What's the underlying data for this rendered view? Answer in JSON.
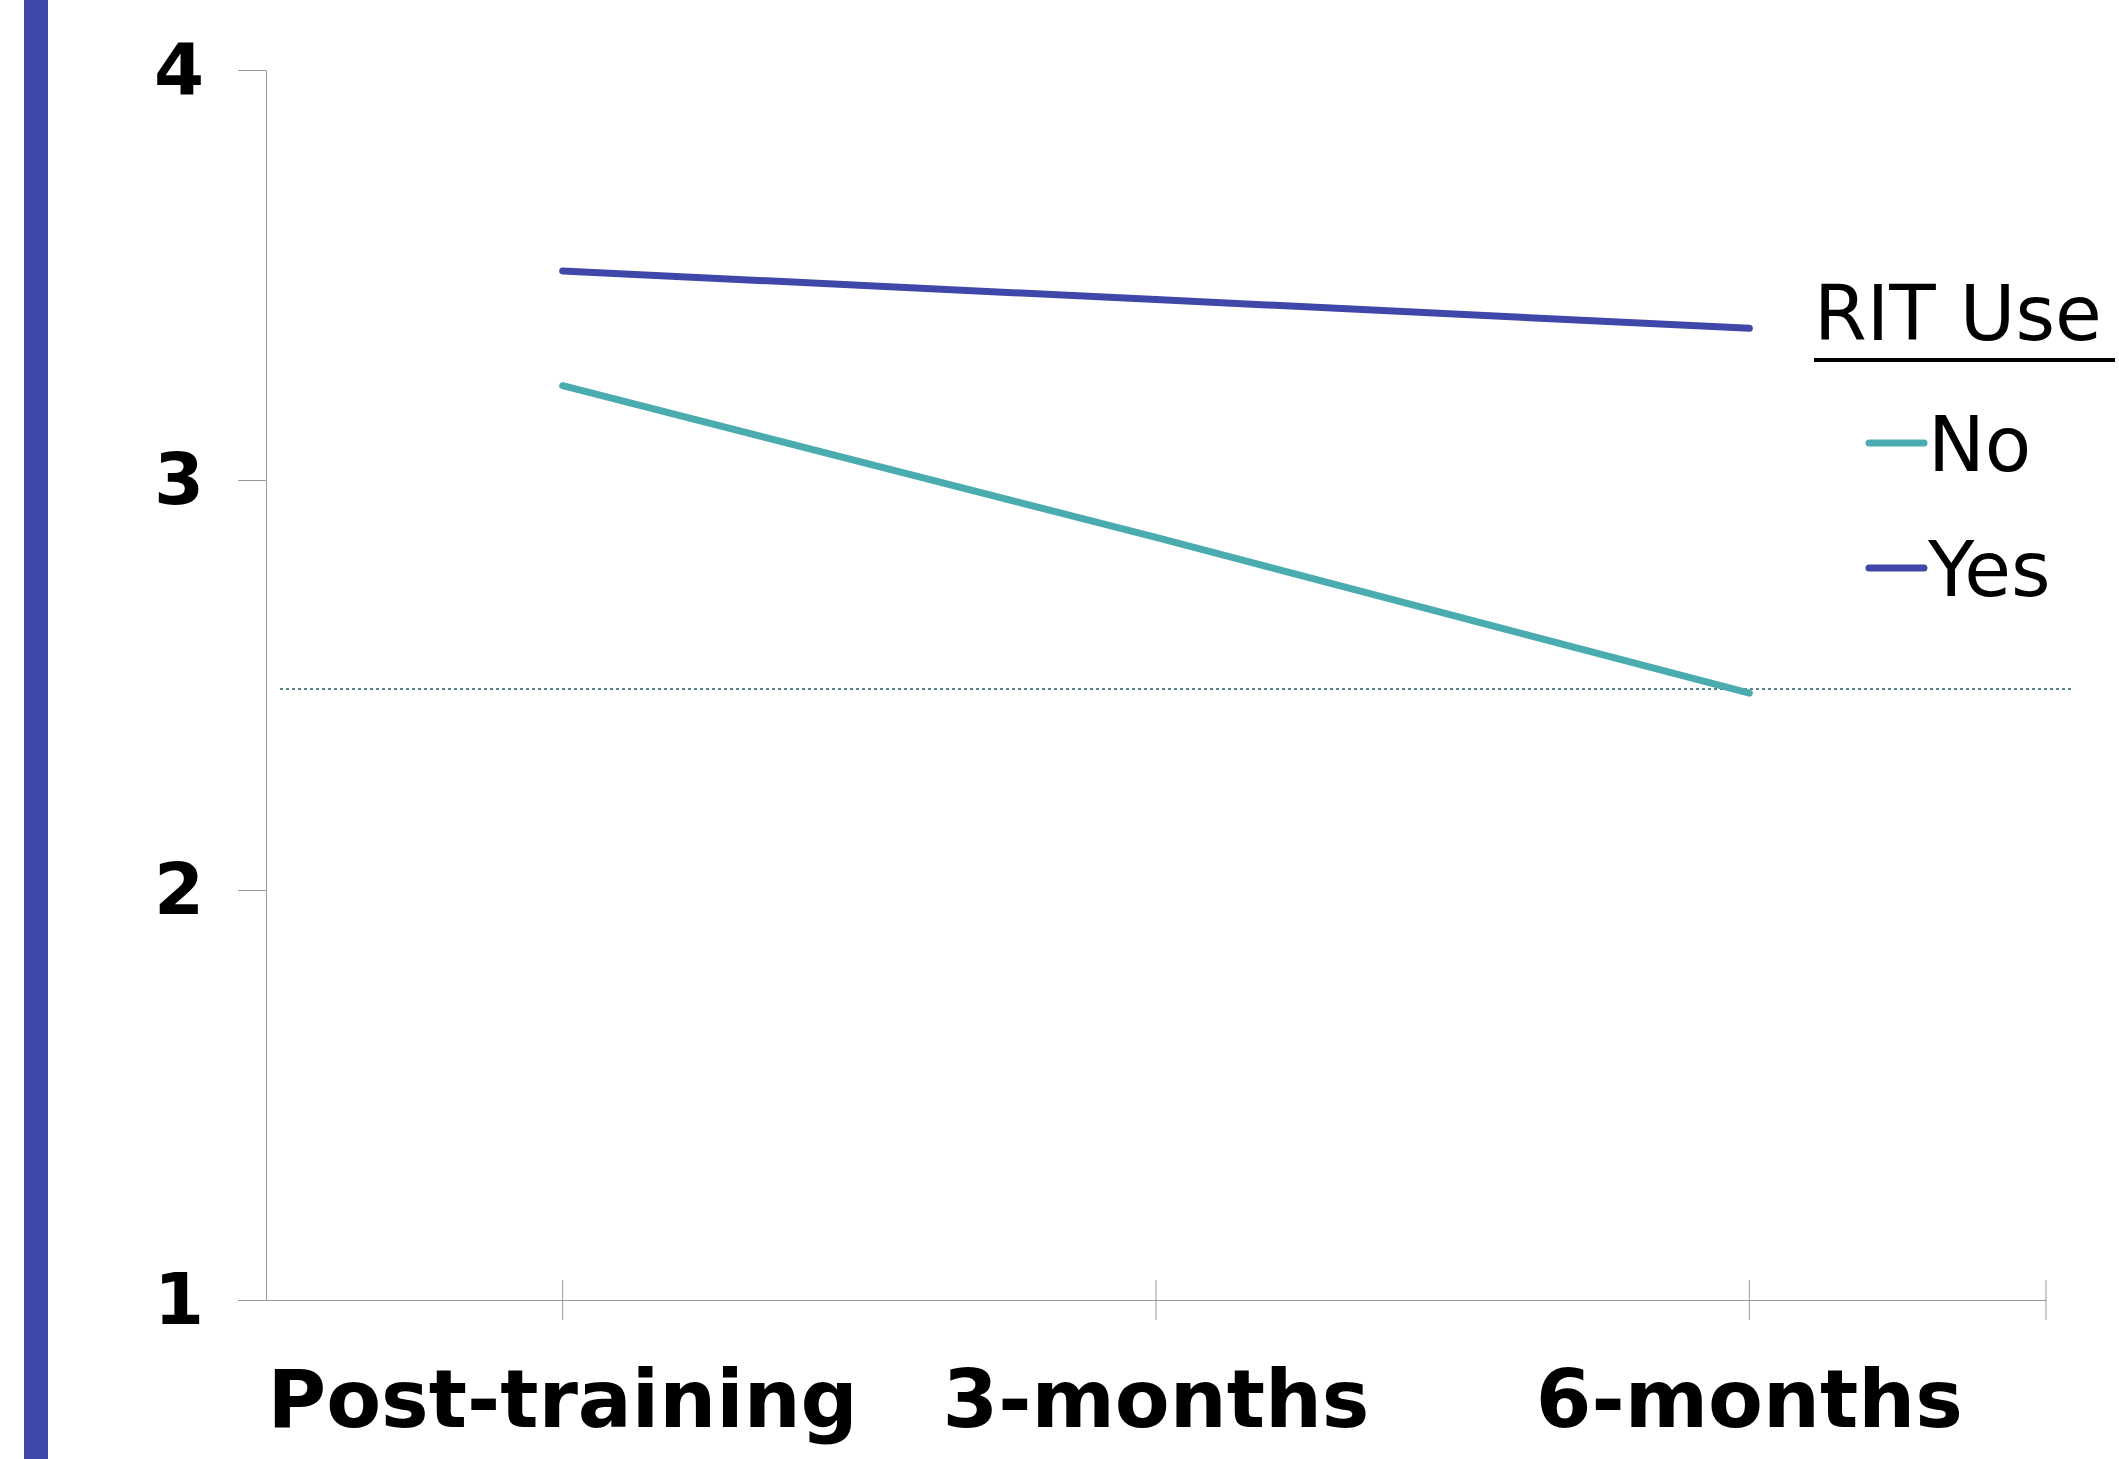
{
  "chart_data": {
    "type": "line",
    "categories": [
      "Post-training",
      "3-months",
      "6-months"
    ],
    "series": [
      {
        "name": "No",
        "color": "#4bacb0",
        "values": [
          3.23,
          2.86,
          2.48
        ]
      },
      {
        "name": "Yes",
        "color": "#3f48a8",
        "values": [
          3.51,
          3.44,
          3.37
        ]
      }
    ],
    "ylim": [
      1,
      4
    ],
    "yticks": [
      1,
      2,
      3,
      4
    ],
    "legend_title": "RIT Use",
    "legend": "right",
    "grid": false,
    "marker": "none",
    "line_style": "solid",
    "ref_lines": [
      {
        "axis": "y",
        "value": 2.49,
        "color": "#1f5f60",
        "line_style": "dotted"
      }
    ]
  }
}
